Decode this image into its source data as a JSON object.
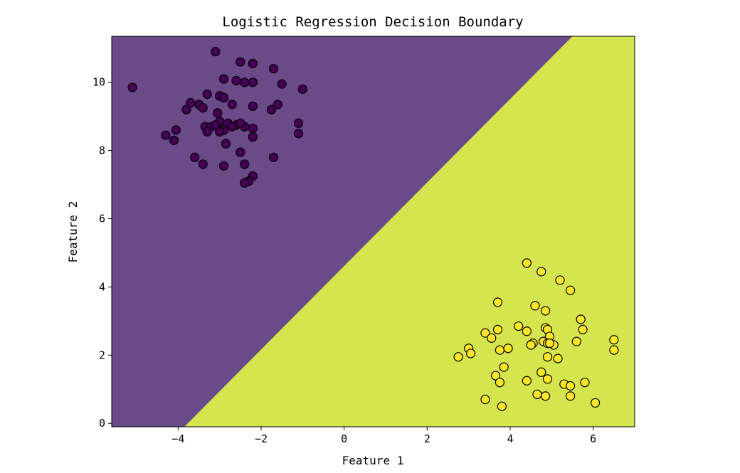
{
  "chart_data": {
    "type": "scatter",
    "title": "Logistic Regression Decision Boundary",
    "xlabel": "Feature 1",
    "ylabel": "Feature 2",
    "xlim": [
      -5.6,
      7.0
    ],
    "ylim": [
      -0.1,
      11.35
    ],
    "xticks": [
      -4,
      -2,
      0,
      2,
      4,
      6
    ],
    "yticks": [
      0,
      2,
      4,
      6,
      8,
      10
    ],
    "grid": false,
    "decision_boundary": {
      "line_points": [
        [
          -3.85,
          -0.1
        ],
        [
          5.5,
          11.35
        ]
      ],
      "region_colors": {
        "class_0": "#6a4a88",
        "class_1": "#d5e54d"
      }
    },
    "series": [
      {
        "color": "#440154",
        "x": [
          -5.1,
          -3.1,
          -2.5,
          -2.2,
          -1.7,
          -2.9,
          -2.6,
          -2.4,
          -2.2,
          -1.5,
          -1.0,
          -3.3,
          -3.0,
          -2.9,
          -3.7,
          -3.5,
          -3.4,
          -2.7,
          -3.8,
          -2.2,
          -1.6,
          -1.75,
          -3.05,
          -3.0,
          -2.9,
          -3.35,
          -3.2,
          -3.1,
          -2.8,
          -2.6,
          -2.4,
          -2.7,
          -2.5,
          -2.2,
          -4.3,
          -4.05,
          -3.3,
          -3.0,
          -2.2,
          -1.1,
          -1.1,
          -4.1,
          -2.85,
          -3.6,
          -3.4,
          -2.5,
          -2.4,
          -1.7,
          -2.9,
          -2.2,
          -2.3,
          -2.4
        ],
        "y": [
          9.85,
          10.9,
          10.6,
          10.55,
          10.4,
          10.1,
          10.05,
          10.0,
          10.0,
          9.95,
          9.8,
          9.65,
          9.6,
          9.55,
          9.4,
          9.35,
          9.25,
          9.35,
          9.2,
          9.3,
          9.35,
          9.2,
          9.1,
          8.85,
          8.6,
          8.7,
          8.7,
          8.75,
          8.8,
          8.75,
          8.7,
          8.7,
          8.8,
          8.65,
          8.45,
          8.6,
          8.55,
          8.55,
          8.4,
          8.8,
          8.5,
          8.3,
          8.2,
          7.8,
          7.6,
          7.95,
          7.6,
          7.8,
          7.55,
          7.25,
          7.1,
          7.05
        ]
      },
      {
        "color": "#fde725",
        "x": [
          4.4,
          4.75,
          5.2,
          5.45,
          3.7,
          4.6,
          4.85,
          5.7,
          4.85,
          5.75,
          3.4,
          3.7,
          4.2,
          4.9,
          3.55,
          4.4,
          4.95,
          5.6,
          4.55,
          4.5,
          4.8,
          4.9,
          5.05,
          3.0,
          3.05,
          3.75,
          3.95,
          2.75,
          4.9,
          5.15,
          3.85,
          3.65,
          4.75,
          4.4,
          4.9,
          5.3,
          5.45,
          5.8,
          3.75,
          4.65,
          4.85,
          5.45,
          3.4,
          6.05,
          3.8,
          6.5,
          6.5,
          4.95
        ],
        "y": [
          4.7,
          4.45,
          4.2,
          3.9,
          3.55,
          3.45,
          3.3,
          3.05,
          2.8,
          2.75,
          2.65,
          2.75,
          2.85,
          2.75,
          2.5,
          2.7,
          2.55,
          2.4,
          2.35,
          2.3,
          2.4,
          2.35,
          2.3,
          2.2,
          2.05,
          2.15,
          2.2,
          1.95,
          1.95,
          1.9,
          1.65,
          1.4,
          1.5,
          1.25,
          1.3,
          1.15,
          1.1,
          1.2,
          1.2,
          0.85,
          0.8,
          0.8,
          0.7,
          0.6,
          0.5,
          2.45,
          2.15,
          2.35
        ]
      }
    ]
  }
}
